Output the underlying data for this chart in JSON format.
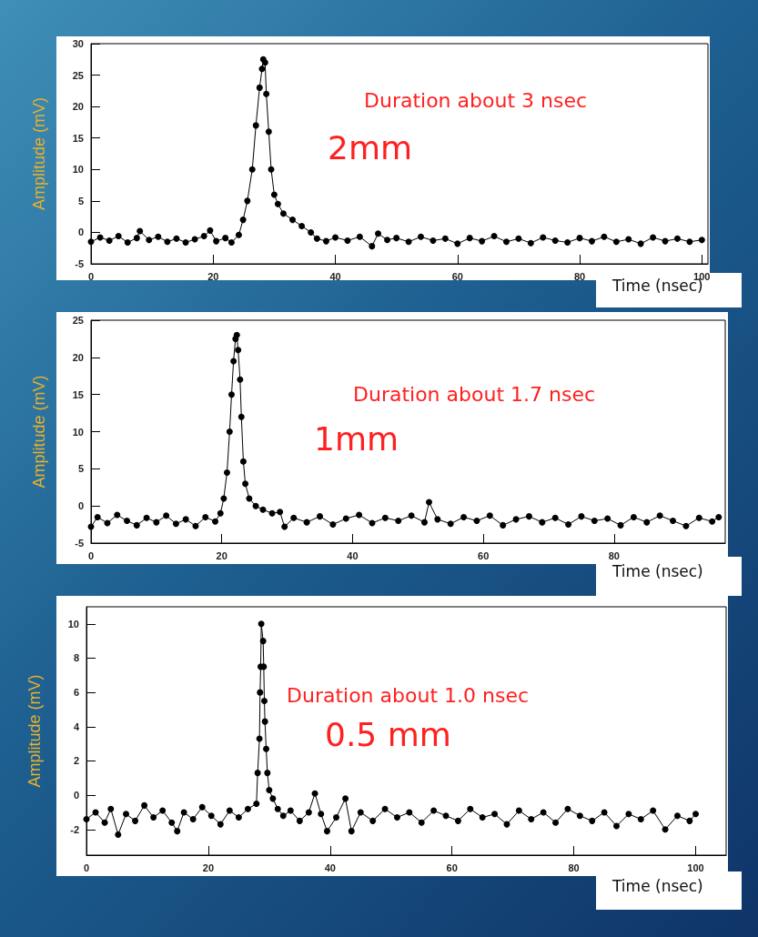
{
  "chart_data": [
    {
      "type": "line",
      "xlabel": "Time (nsec)",
      "ylabel": "Amplitude (mV)",
      "annotations": [
        "Duration about 3 nsec",
        "2mm"
      ],
      "xlim": [
        0,
        101
      ],
      "ylim": [
        -5,
        30
      ],
      "xticks": [
        0,
        20,
        40,
        60,
        80,
        100
      ],
      "yticks": [
        -5,
        0,
        5,
        10,
        15,
        20,
        25,
        30
      ],
      "marker": "circle",
      "line_style": "solid",
      "series": [
        {
          "color": "#000000",
          "x": [
            0,
            1.5,
            3,
            4.5,
            6,
            7.5,
            8,
            9.5,
            11,
            12.5,
            14,
            15.5,
            17,
            18.5,
            19.5,
            20.5,
            22,
            23,
            24.2,
            24.9,
            25.6,
            26.4,
            27,
            27.6,
            28,
            28.2,
            28.5,
            28.7,
            29.1,
            29.5,
            30,
            30.6,
            31.5,
            33,
            34.5,
            36,
            37,
            38.5,
            40,
            42,
            44,
            46,
            47,
            48.5,
            50,
            52,
            54,
            56,
            58,
            60,
            62,
            64,
            66,
            68,
            70,
            72,
            74,
            76,
            78,
            80,
            82,
            84,
            86,
            88,
            90,
            92,
            94,
            96,
            98,
            100
          ],
          "values": [
            -1.5,
            -0.8,
            -1.3,
            -0.6,
            -1.6,
            -0.9,
            0.2,
            -1.2,
            -0.7,
            -1.5,
            -1.0,
            -1.6,
            -1.1,
            -0.6,
            0.3,
            -1.4,
            -0.9,
            -1.6,
            -0.4,
            2,
            5,
            10,
            17,
            23,
            26,
            27.5,
            27,
            22,
            16,
            10,
            6,
            4.5,
            3,
            2,
            1,
            0,
            -1,
            -1.4,
            -0.8,
            -1.3,
            -0.7,
            -2.2,
            -0.2,
            -1.2,
            -0.9,
            -1.5,
            -0.7,
            -1.3,
            -1.0,
            -1.8,
            -0.9,
            -1.4,
            -0.6,
            -1.5,
            -1.0,
            -1.7,
            -0.8,
            -1.3,
            -1.6,
            -0.9,
            -1.4,
            -0.7,
            -1.5,
            -1.1,
            -1.8,
            -0.8,
            -1.4,
            -1.0,
            -1.5,
            -1.2
          ]
        }
      ]
    },
    {
      "type": "line",
      "xlabel": "Time (nsec)",
      "ylabel": "Amplitude (mV)",
      "annotations": [
        "Duration about 1.7 nsec",
        "1mm"
      ],
      "xlim": [
        0,
        97
      ],
      "ylim": [
        -5,
        25
      ],
      "xticks": [
        0,
        20,
        40,
        60,
        80
      ],
      "yticks": [
        -5,
        0,
        5,
        10,
        15,
        20,
        25
      ],
      "marker": "circle",
      "line_style": "solid",
      "series": [
        {
          "color": "#000000",
          "x": [
            0,
            1,
            2.5,
            4,
            5.5,
            7,
            8.5,
            10,
            11.5,
            13,
            14.5,
            16,
            17.5,
            19,
            19.8,
            20.3,
            20.8,
            21.2,
            21.5,
            21.8,
            22.1,
            22.3,
            22.5,
            22.8,
            23,
            23.3,
            23.6,
            24.2,
            25.2,
            26.3,
            27.7,
            28.9,
            29.6,
            31,
            33,
            35,
            37,
            39,
            41,
            43,
            45,
            47,
            49,
            51,
            51.7,
            53,
            55,
            57,
            59,
            61,
            63,
            65,
            67,
            69,
            71,
            73,
            75,
            77,
            79,
            81,
            83,
            85,
            87,
            89,
            91,
            93,
            95,
            96
          ],
          "values": [
            -2.8,
            -1.5,
            -2.3,
            -1.2,
            -2.0,
            -2.6,
            -1.6,
            -2.2,
            -1.3,
            -2.4,
            -1.8,
            -2.7,
            -1.5,
            -2.1,
            -1,
            1,
            4.5,
            10,
            15,
            19.5,
            22.5,
            23,
            21,
            17,
            12,
            6,
            3,
            1,
            0,
            -0.5,
            -1,
            -0.8,
            -2.8,
            -1.6,
            -2.2,
            -1.4,
            -2.5,
            -1.7,
            -1.2,
            -2.3,
            -1.6,
            -2.0,
            -1.3,
            -2.2,
            0.5,
            -1.8,
            -2.4,
            -1.5,
            -2.0,
            -1.3,
            -2.6,
            -1.8,
            -1.4,
            -2.2,
            -1.6,
            -2.5,
            -1.4,
            -2.0,
            -1.7,
            -2.6,
            -1.5,
            -2.2,
            -1.3,
            -2.0,
            -2.7,
            -1.6,
            -2.1,
            -1.5
          ]
        }
      ]
    },
    {
      "type": "line",
      "xlabel": "Time (nsec)",
      "ylabel": "Amplitude (mV)",
      "annotations": [
        "Duration about 1.0 nsec",
        "0.5 mm"
      ],
      "xlim": [
        0,
        105
      ],
      "ylim": [
        -3.5,
        11
      ],
      "xticks": [
        0,
        20,
        40,
        60,
        80,
        100
      ],
      "yticks": [
        -2,
        0,
        2,
        4,
        6,
        8,
        10
      ],
      "marker": "circle",
      "line_style": "solid",
      "series": [
        {
          "color": "#000000",
          "x": [
            0,
            1.5,
            3,
            4,
            5.2,
            6.5,
            8,
            9.5,
            11,
            12.5,
            14,
            14.9,
            16,
            17.5,
            19,
            20.5,
            22,
            23.5,
            25,
            26.5,
            27.9,
            28.1,
            28.4,
            28.5,
            28.6,
            28.7,
            29,
            29.1,
            29.2,
            29.3,
            29.5,
            29.7,
            30,
            30.6,
            31.4,
            32.3,
            33.5,
            35,
            36.5,
            37.5,
            38.5,
            39.5,
            41,
            42.5,
            43.5,
            45,
            47,
            49,
            51,
            53,
            55,
            57,
            59,
            61,
            63,
            65,
            67,
            69,
            71,
            73,
            75,
            77,
            79,
            81,
            83,
            85,
            87,
            89,
            91,
            93,
            95,
            97,
            99,
            100
          ],
          "values": [
            -1.4,
            -1.0,
            -1.6,
            -0.8,
            -2.3,
            -1.1,
            -1.5,
            -0.6,
            -1.3,
            -0.9,
            -1.6,
            -2.1,
            -1.0,
            -1.4,
            -0.7,
            -1.2,
            -1.7,
            -0.9,
            -1.3,
            -0.8,
            -0.5,
            1.3,
            3.3,
            6,
            7.5,
            10,
            9,
            7.5,
            5.5,
            4.3,
            2.7,
            1.3,
            0.3,
            -0.2,
            -0.8,
            -1.2,
            -0.9,
            -1.5,
            -1.0,
            0.1,
            -1.1,
            -2.1,
            -1.3,
            -0.2,
            -2.1,
            -1.0,
            -1.5,
            -0.8,
            -1.3,
            -1.0,
            -1.6,
            -0.9,
            -1.2,
            -1.5,
            -0.8,
            -1.3,
            -1.1,
            -1.7,
            -0.9,
            -1.4,
            -1.0,
            -1.6,
            -0.8,
            -1.2,
            -1.5,
            -1.0,
            -1.8,
            -1.1,
            -1.4,
            -0.9,
            -2.0,
            -1.2,
            -1.5,
            -1.1
          ]
        }
      ]
    }
  ]
}
